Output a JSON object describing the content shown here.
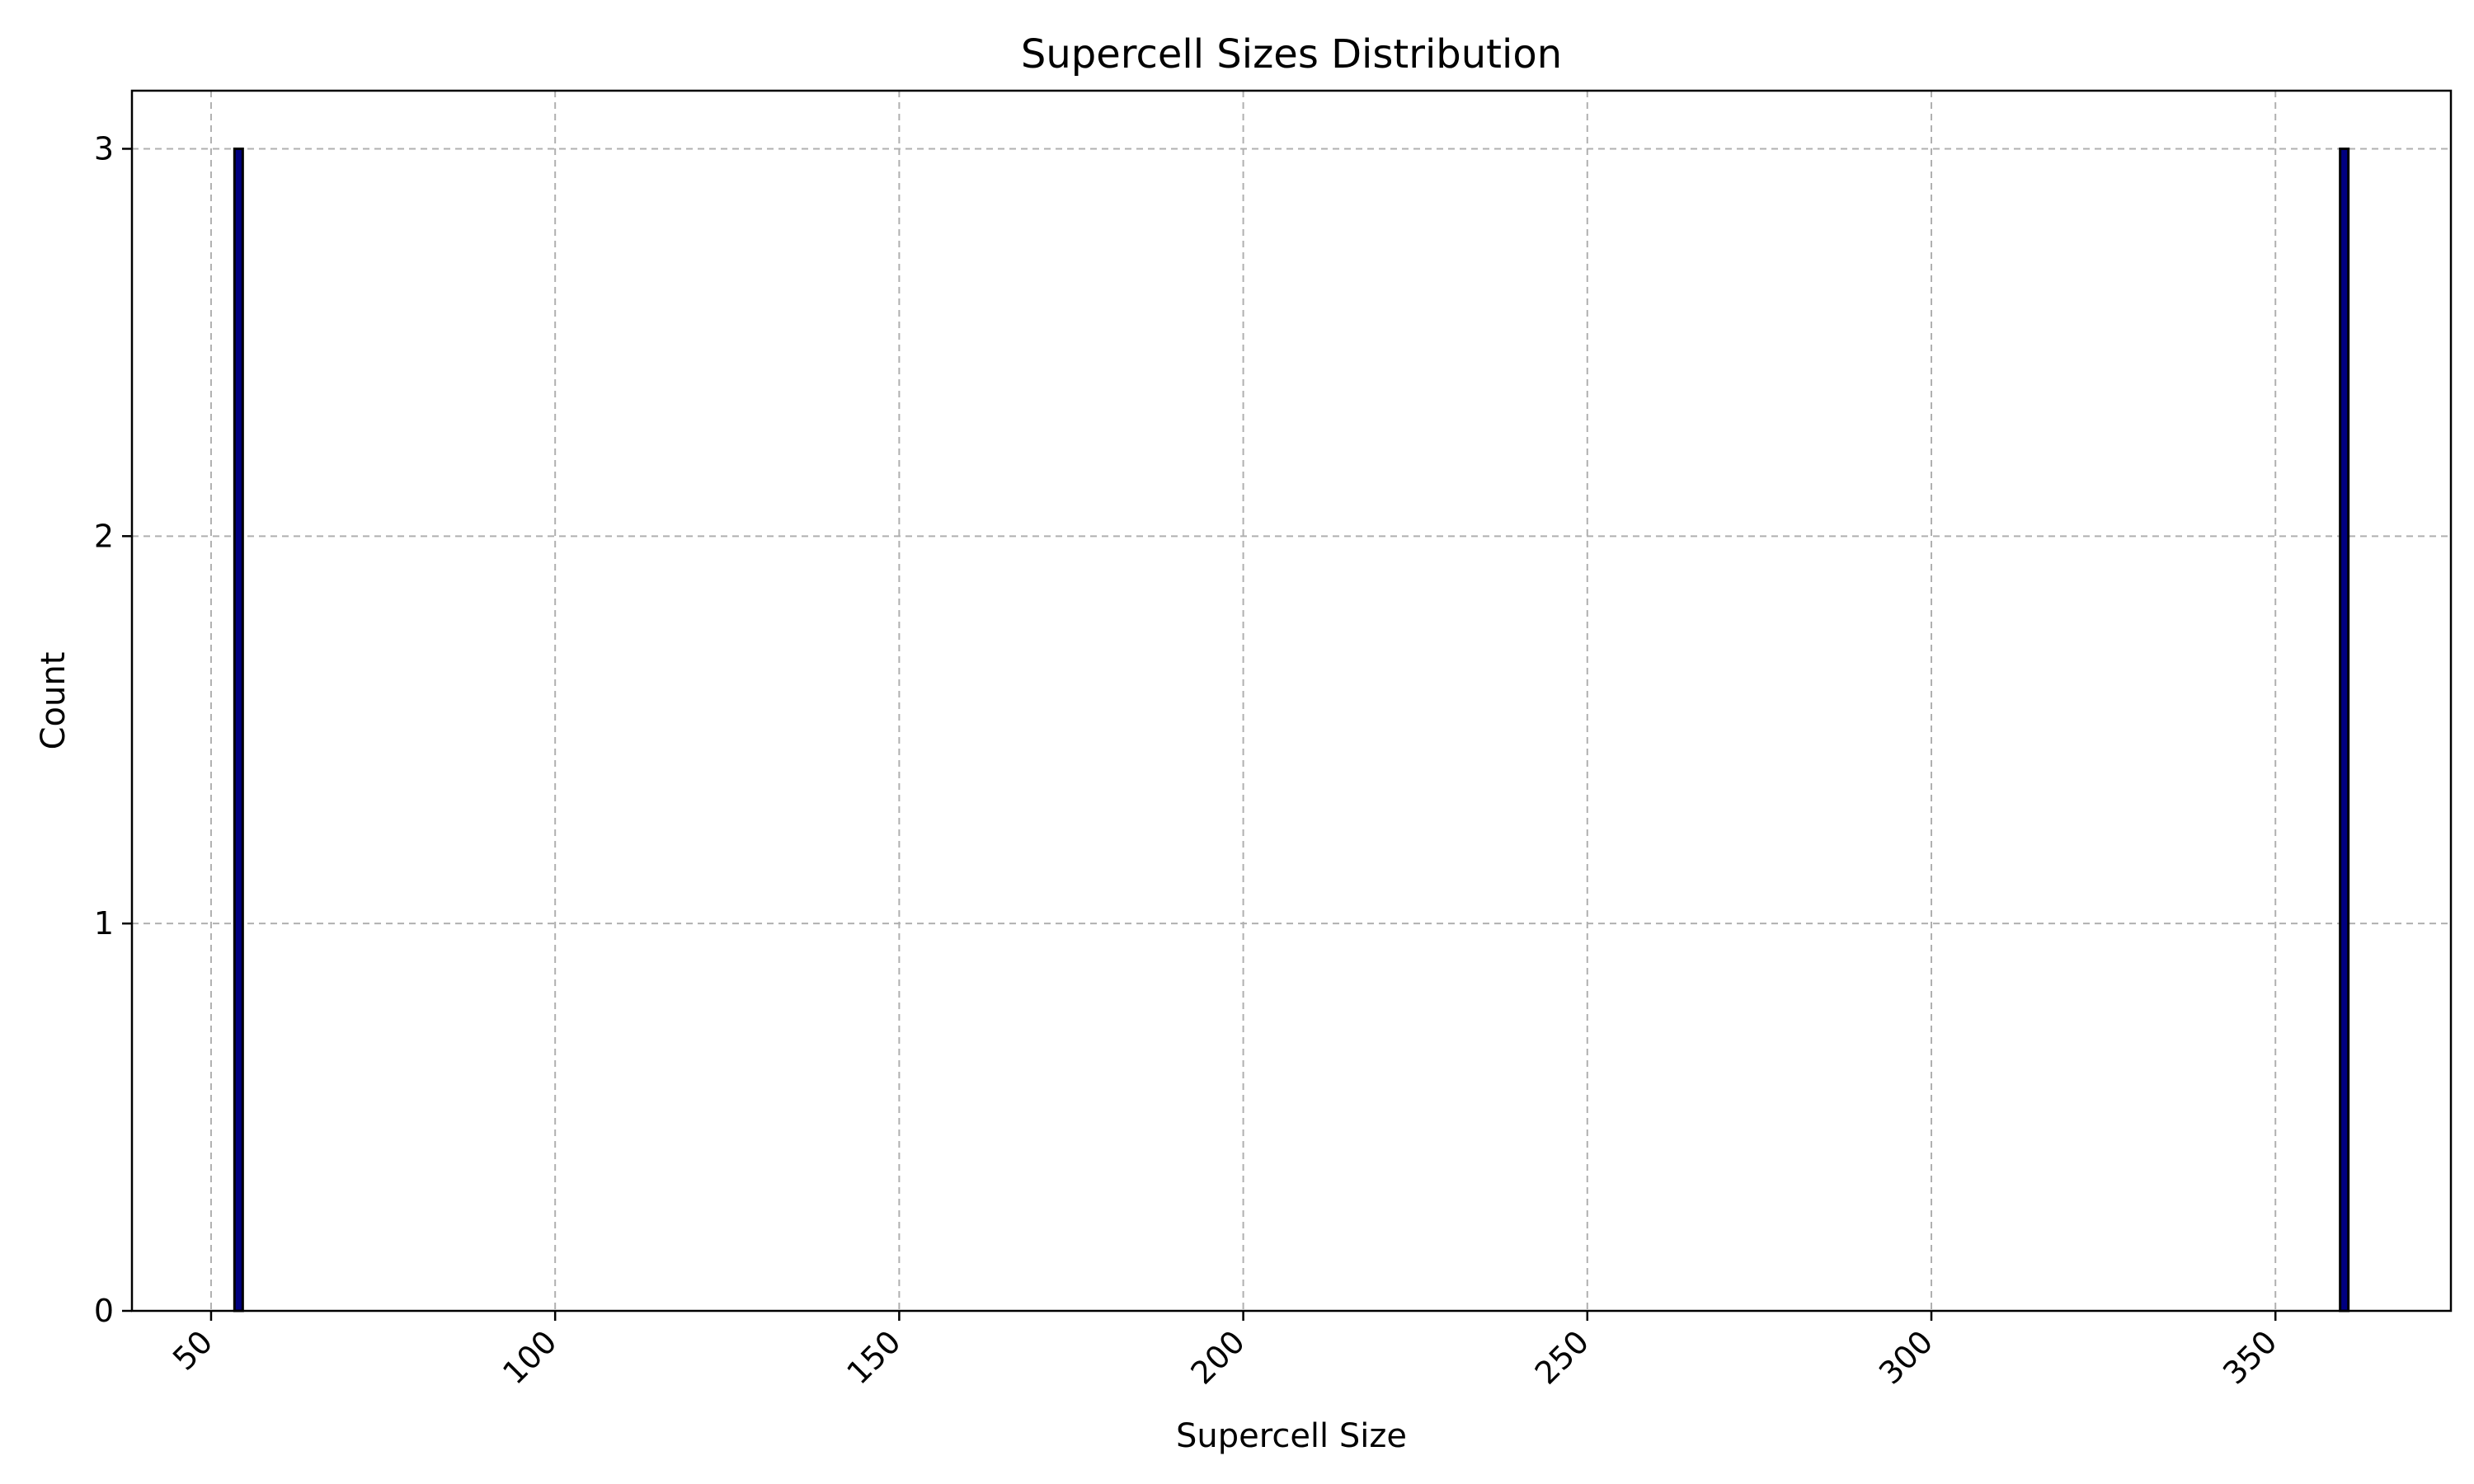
{
  "chart_data": {
    "type": "bar",
    "title": "Supercell Sizes Distribution",
    "xlabel": "Supercell Size",
    "ylabel": "Count",
    "xlim": [
      38.5,
      375.5
    ],
    "ylim": [
      0,
      3.15
    ],
    "xticks": [
      50,
      100,
      150,
      200,
      250,
      300,
      350
    ],
    "yticks": [
      0,
      1,
      2,
      3
    ],
    "grid": true,
    "bar_color": "#000080",
    "edge_color": "#000000",
    "bin_width": 1.2,
    "bars": [
      {
        "x": 54,
        "value": 3
      },
      {
        "x": 360,
        "value": 3
      }
    ]
  }
}
